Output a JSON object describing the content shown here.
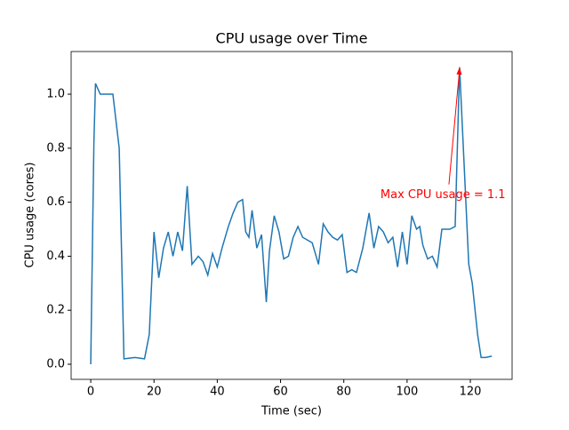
{
  "chart_data": {
    "type": "line",
    "title": "CPU usage over Time",
    "x_label": "Time (sec)",
    "y_label": "CPU usage (cores)",
    "series": [
      {
        "name": "CPU usage",
        "color": "#1f77b4",
        "x": [
          0,
          1,
          1.5,
          3,
          7,
          9,
          10.5,
          14,
          17,
          18.5,
          20,
          21.5,
          23,
          24.5,
          26,
          27.5,
          29,
          30.5,
          32,
          34,
          35.5,
          37,
          38.5,
          40,
          41.5,
          43.5,
          45,
          46.5,
          48,
          49,
          50,
          51,
          52.5,
          54,
          55.5,
          56.5,
          58,
          59.5,
          61,
          62.5,
          64,
          65.5,
          67,
          70,
          72,
          73.5,
          75,
          76.5,
          78,
          79.5,
          81,
          82.5,
          84,
          86,
          88,
          89.5,
          91,
          92.5,
          94,
          95.5,
          97,
          98.5,
          100,
          101.5,
          103,
          104,
          105,
          106.5,
          108,
          109.5,
          111,
          113.5,
          115.2,
          116.6,
          119.5,
          120.6,
          122.3,
          123.4,
          124.8,
          126.8
        ],
        "values": [
          0,
          0.82,
          1.04,
          1.0,
          1.0,
          0.8,
          0.02,
          0.025,
          0.02,
          0.11,
          0.49,
          0.32,
          0.43,
          0.49,
          0.4,
          0.49,
          0.42,
          0.66,
          0.37,
          0.4,
          0.38,
          0.33,
          0.41,
          0.36,
          0.43,
          0.51,
          0.56,
          0.6,
          0.61,
          0.49,
          0.47,
          0.57,
          0.43,
          0.48,
          0.23,
          0.42,
          0.55,
          0.49,
          0.39,
          0.4,
          0.47,
          0.51,
          0.47,
          0.45,
          0.37,
          0.52,
          0.49,
          0.47,
          0.46,
          0.48,
          0.34,
          0.35,
          0.34,
          0.43,
          0.56,
          0.43,
          0.51,
          0.49,
          0.45,
          0.47,
          0.36,
          0.49,
          0.37,
          0.55,
          0.5,
          0.51,
          0.44,
          0.39,
          0.4,
          0.36,
          0.5,
          0.5,
          0.51,
          1.1,
          0.37,
          0.3,
          0.11,
          0.025,
          0.025,
          0.03
        ]
      }
    ],
    "annotation": {
      "text": "Max CPU usage = 1.1",
      "color": "red"
    },
    "xlim": [
      -6.2,
      133.2
    ],
    "ylim": [
      -0.056,
      1.158
    ],
    "xticks": [
      0,
      20,
      40,
      60,
      80,
      100,
      120
    ],
    "yticks": [
      {
        "value": 0,
        "label": "0.0"
      },
      0.2,
      0.4,
      0.6,
      0.8,
      {
        "value": 1,
        "label": "1.0"
      }
    ]
  }
}
